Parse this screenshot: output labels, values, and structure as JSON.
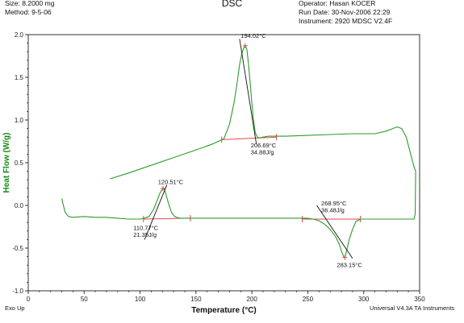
{
  "header": {
    "size": "Size:  8.2000 mg",
    "method": "Method: 9-5-06",
    "title": "DSC",
    "operator": "Operator: Hasan KOCER",
    "run_date": "Run Date: 30-Nov-2006 22:29",
    "instrument": "Instrument: 2920 MDSC V2.4F"
  },
  "footer": {
    "exo": "Exo Up",
    "software": "Universal V4.3A TA Instruments"
  },
  "colors": {
    "curve": "#2e9a2e",
    "analysis": "#e04a4a",
    "ylabel": "#128a12"
  },
  "chart_data": {
    "type": "line",
    "title": "DSC",
    "xlabel": "Temperature (°C)",
    "ylabel": "Heat Flow (W/g)",
    "xlim": [
      0,
      350
    ],
    "ylim": [
      -1.0,
      2.0
    ],
    "x_ticks": [
      "0",
      "50",
      "100",
      "150",
      "200",
      "250",
      "300",
      "350"
    ],
    "y_ticks": [
      "2.0",
      "1.5",
      "1.0",
      "0.5",
      "0.0",
      "-0.5",
      "-1.0"
    ],
    "series": [
      {
        "segment": "first heating",
        "x": [
          30,
          31,
          33,
          36,
          40,
          50,
          60,
          70,
          80,
          90,
          96,
          100,
          104,
          108,
          112,
          115,
          118,
          120,
          121,
          122,
          124,
          126,
          128,
          131,
          135,
          140,
          150,
          160,
          170,
          180,
          190,
          200,
          210,
          220,
          230,
          240,
          250,
          255,
          260,
          265,
          270,
          275,
          278,
          280,
          282,
          283,
          285,
          287,
          290,
          293,
          297,
          300,
          310,
          320,
          330,
          340,
          345,
          346,
          346.5
        ],
        "y": [
          0.08,
          0.02,
          -0.08,
          -0.13,
          -0.14,
          -0.13,
          -0.14,
          -0.14,
          -0.15,
          -0.16,
          -0.16,
          -0.16,
          -0.15,
          -0.13,
          -0.05,
          0.05,
          0.15,
          0.19,
          0.2,
          0.18,
          0.09,
          0.0,
          -0.08,
          -0.13,
          -0.15,
          -0.15,
          -0.15,
          -0.15,
          -0.15,
          -0.15,
          -0.15,
          -0.15,
          -0.15,
          -0.15,
          -0.15,
          -0.15,
          -0.15,
          -0.16,
          -0.18,
          -0.22,
          -0.28,
          -0.37,
          -0.45,
          -0.53,
          -0.6,
          -0.61,
          -0.52,
          -0.4,
          -0.28,
          -0.19,
          -0.16,
          -0.16,
          -0.16,
          -0.16,
          -0.16,
          -0.16,
          -0.16,
          -0.1,
          0.4
        ]
      },
      {
        "segment": "second heating",
        "x": [
          73,
          90,
          110,
          130,
          150,
          165,
          175,
          180,
          184,
          187,
          189,
          191,
          192.5,
          194,
          195.5,
          197,
          199,
          201,
          203,
          205,
          207,
          210,
          215,
          230,
          250,
          270,
          290,
          300,
          310,
          320,
          326,
          330,
          334,
          338,
          342,
          345,
          346.5
        ],
        "y": [
          0.31,
          0.38,
          0.47,
          0.56,
          0.65,
          0.72,
          0.78,
          0.95,
          1.2,
          1.45,
          1.65,
          1.78,
          1.84,
          1.87,
          1.83,
          1.65,
          1.35,
          1.05,
          0.85,
          0.8,
          0.79,
          0.8,
          0.81,
          0.81,
          0.82,
          0.83,
          0.84,
          0.84,
          0.84,
          0.87,
          0.9,
          0.92,
          0.9,
          0.8,
          0.6,
          0.45,
          0.4
        ]
      }
    ],
    "baselines": [
      {
        "x": [
          103,
          145
        ],
        "y": [
          -0.16,
          -0.15
        ]
      },
      {
        "x": [
          173,
          222
        ],
        "y": [
          0.77,
          0.8
        ]
      },
      {
        "x": [
          245,
          297
        ],
        "y": [
          -0.16,
          -0.16
        ]
      }
    ],
    "tangents": [
      {
        "x": [
          104,
          124
        ],
        "y": [
          -0.4,
          0.24
        ]
      },
      {
        "x": [
          189,
          204
        ],
        "y": [
          1.95,
          0.72
        ]
      },
      {
        "x": [
          258,
          290
        ],
        "y": [
          0.0,
          -0.62
        ]
      }
    ],
    "peak_markers": [
      {
        "x": 120.51,
        "y": 0.2
      },
      {
        "x": 194.02,
        "y": 1.87
      },
      {
        "x": 283.15,
        "y": -0.61
      }
    ],
    "annotations": [
      {
        "text": "120.51°C",
        "x": 116,
        "y": 0.25
      },
      {
        "text": "110.77°C",
        "x": 94,
        "y": -0.29
      },
      {
        "text": "21.35J/g",
        "x": 94,
        "y": -0.37
      },
      {
        "text": "194.02°C",
        "x": 190,
        "y": 1.96
      },
      {
        "text": "206.69°C",
        "x": 199,
        "y": 0.68
      },
      {
        "text": "34.88J/g",
        "x": 199,
        "y": 0.6
      },
      {
        "text": "268.95°C",
        "x": 262,
        "y": 0.0
      },
      {
        "text": "36.48J/g",
        "x": 262,
        "y": -0.08
      },
      {
        "text": "283.15°C",
        "x": 276,
        "y": -0.72
      }
    ]
  }
}
